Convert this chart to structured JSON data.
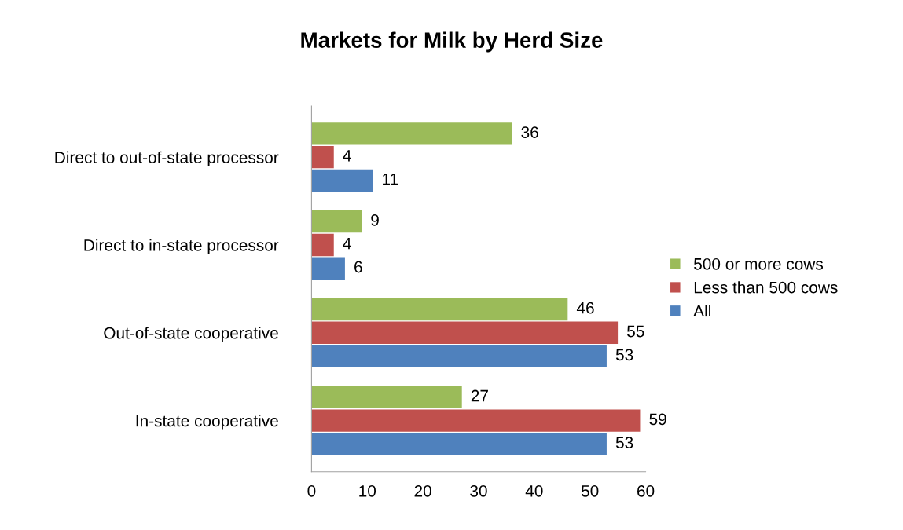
{
  "chart_data": {
    "type": "bar",
    "orientation": "horizontal",
    "title": "Markets for Milk by Herd Size",
    "categories": [
      "Direct to out-of-state processor",
      "Direct to in-state processor",
      "Out-of-state cooperative",
      "In-state cooperative"
    ],
    "series": [
      {
        "name": "500 or more cows",
        "color": "#9bbb59",
        "values": [
          36,
          9,
          46,
          27
        ]
      },
      {
        "name": "Less than 500 cows",
        "color": "#c0504d",
        "values": [
          4,
          4,
          55,
          59
        ]
      },
      {
        "name": "All",
        "color": "#4f81bd",
        "values": [
          11,
          6,
          53,
          53
        ]
      }
    ],
    "xlim": [
      0,
      60
    ],
    "xticks": [
      0,
      10,
      20,
      30,
      40,
      50,
      60
    ],
    "data_labels": true,
    "grid": false,
    "legend": "right"
  }
}
